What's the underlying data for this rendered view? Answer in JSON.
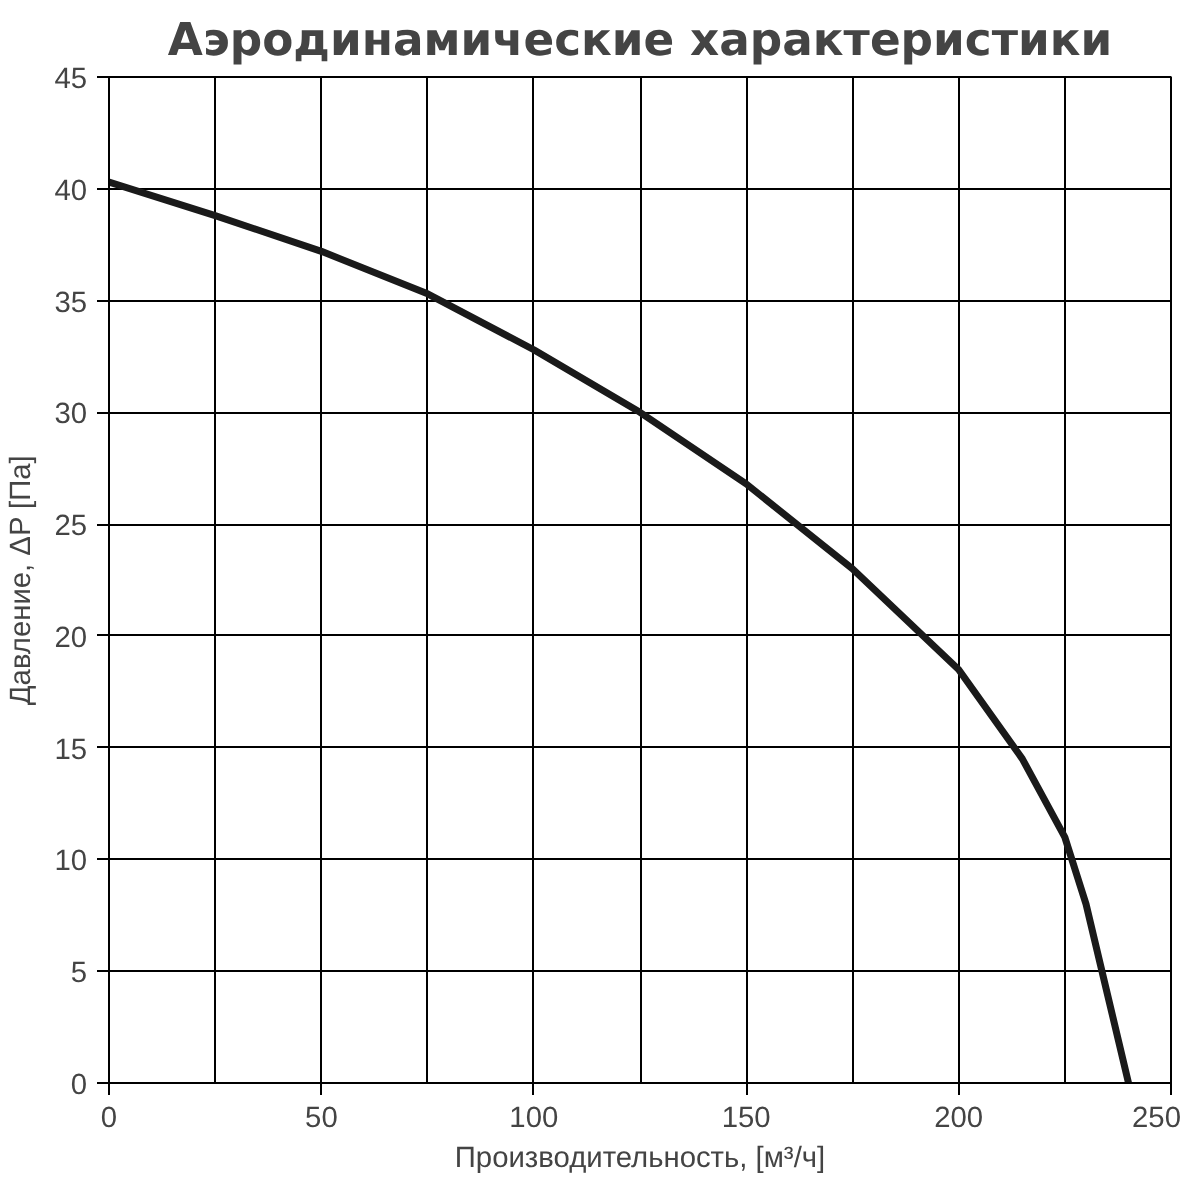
{
  "chart_data": {
    "type": "line",
    "title": "Аэродинамические характеристики",
    "xlabel": "Производительность, [м³/ч]",
    "ylabel": "Давление, ΔP [Па]",
    "x": [
      0,
      25,
      50,
      75,
      100,
      125,
      150,
      175,
      200,
      215,
      225,
      230,
      235,
      240
    ],
    "series": [
      {
        "color": "#1a1a1a",
        "values": [
          40.3,
          38.8,
          37.2,
          35.3,
          32.8,
          30,
          26.8,
          23,
          18.5,
          14.5,
          11,
          8,
          4,
          0
        ]
      }
    ],
    "xlim": [
      0,
      250
    ],
    "ylim": [
      0,
      45
    ],
    "xticks": [
      0,
      50,
      100,
      150,
      200,
      250
    ],
    "yticks": [
      0,
      5,
      10,
      15,
      20,
      25,
      30,
      35,
      40,
      45
    ],
    "grid": true,
    "line_style": "solid"
  }
}
